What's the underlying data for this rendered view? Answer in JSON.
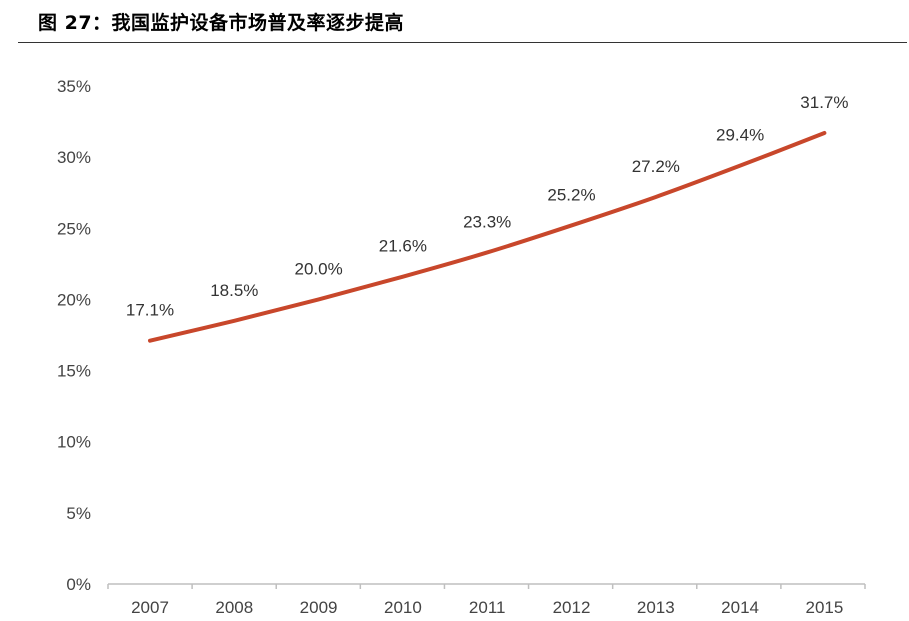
{
  "figure_title": "图 27：我国监护设备市场普及率逐步提高",
  "chart_data": {
    "type": "line",
    "title": "",
    "xlabel": "",
    "ylabel": "",
    "categories": [
      "2007",
      "2008",
      "2009",
      "2010",
      "2011",
      "2012",
      "2013",
      "2014",
      "2015"
    ],
    "values": [
      17.1,
      18.5,
      20.0,
      21.6,
      23.3,
      25.2,
      27.2,
      29.4,
      31.7
    ],
    "data_labels": [
      "17.1%",
      "18.5%",
      "20.0%",
      "21.6%",
      "23.3%",
      "25.2%",
      "27.2%",
      "29.4%",
      "31.7%"
    ],
    "ylim": [
      0,
      35
    ],
    "y_ticks": [
      0,
      5,
      10,
      15,
      20,
      25,
      30,
      35
    ],
    "y_tick_labels": [
      "0%",
      "5%",
      "10%",
      "15%",
      "20%",
      "25%",
      "30%",
      "35%"
    ],
    "grid": false,
    "legend": "none",
    "line_color": "#C8472B",
    "axis_color": "#BFBFBF"
  }
}
